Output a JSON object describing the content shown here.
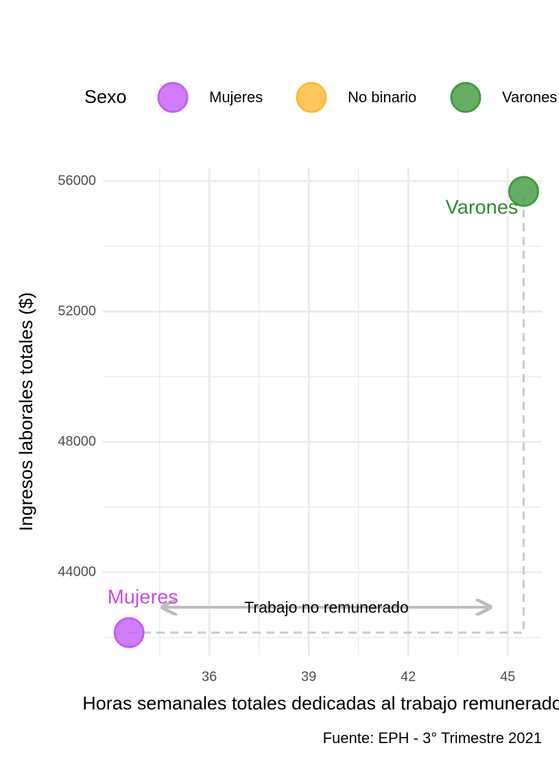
{
  "chart_data": {
    "type": "scatter",
    "legend_title": "Sexo",
    "xlabel": "Horas semanales totales dedicadas al trabajo remunerado",
    "ylabel": "Ingresos laborales totales ($)",
    "caption": "Fuente: EPH - 3° Trimestre 2021",
    "annotation": "Trabajo no remunerado",
    "series": [
      {
        "name": "Mujeres",
        "color": "#c65cf5",
        "label_color": "#c44de8",
        "x": [
          33.58
        ],
        "y": [
          42147
        ]
      },
      {
        "name": "No binario",
        "color": "#ffb833",
        "x": [],
        "y": []
      },
      {
        "name": "Varones",
        "color": "#3f9b3f",
        "label_color": "#2e8b2e",
        "x": [
          45.48
        ],
        "y": [
          55684
        ]
      }
    ],
    "xlim": [
      32.79,
      46.03
    ],
    "xticks": [
      36,
      39,
      42,
      45
    ],
    "ylim": [
      41453,
      56400
    ],
    "yticks": [
      44000,
      48000,
      52000,
      56000
    ],
    "grid": true,
    "legend": "top"
  }
}
